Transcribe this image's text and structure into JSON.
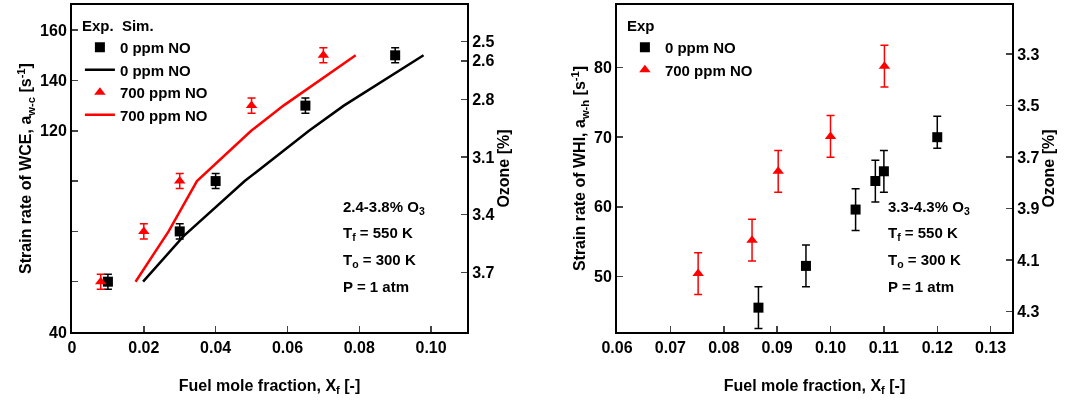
{
  "chart_data": [
    {
      "type": "scatter",
      "xlabel": "Fuel mole fraction, X$_{f}$ [-]",
      "ylabel": "Strain rate of WCE, a$_{w-c}$ [s$^{-1}$]",
      "y2label": "Ozone [%]",
      "legend_title": "Exp.  Sim.",
      "legend": "top left",
      "grid": false,
      "xlim": [
        0,
        0.11
      ],
      "xticks": [
        0,
        {
          "value": 0.02,
          "label": "0.02"
        },
        {
          "value": 0.04,
          "label": "0.04"
        },
        {
          "value": 0.06,
          "label": "0.06"
        },
        {
          "value": 0.08,
          "label": "0.08"
        },
        {
          "value": 0.1,
          "label": "0.10"
        }
      ],
      "ylim": [
        40,
        170
      ],
      "yticks": [
        40,
        {
          "value": 60,
          "label": null
        },
        {
          "value": 80,
          "label": null
        },
        {
          "value": 100,
          "label": null
        },
        120,
        140,
        160
      ],
      "y2lim": [
        4.01,
        2.31
      ],
      "y2ticks": [
        {
          "value": 2.5,
          "label": "2.5"
        },
        {
          "value": 2.6,
          "label": "2.6"
        },
        {
          "value": 2.8,
          "label": "2.8"
        },
        {
          "value": 3.1,
          "label": "3.1"
        },
        {
          "value": 3.4,
          "label": "3.4"
        },
        {
          "value": 3.7,
          "label": "3.7"
        }
      ],
      "series": [
        {
          "name": "0 ppm NO",
          "color": "#000000",
          "marker": "square",
          "x": [
            0.01,
            0.03,
            0.04,
            0.065,
            0.09
          ],
          "values": [
            60,
            80,
            100,
            130,
            150
          ],
          "errors": [
            3,
            3,
            3,
            3,
            3
          ]
        },
        {
          "name": "0 ppm NO",
          "type": "line",
          "color": "#000000",
          "marker": "none",
          "line_style": "solid",
          "x": [
            0.0198,
            0.031,
            0.0481,
            0.066,
            0.0757,
            0.0979
          ],
          "values": [
            60,
            78,
            100,
            120,
            130,
            150
          ]
        },
        {
          "name": "700 ppm NO",
          "color": "#ff0000",
          "marker": "triangle",
          "x": [
            0.008,
            0.02,
            0.03,
            0.05,
            0.07
          ],
          "values": [
            60,
            80,
            100,
            130,
            150
          ],
          "errors": [
            3,
            3,
            3,
            3,
            3
          ]
        },
        {
          "name": "700 ppm NO",
          "type": "line",
          "color": "#ff0000",
          "marker": "none",
          "line_style": "solid",
          "x": [
            0.0177,
            0.0269,
            0.0348,
            0.0499,
            0.0589,
            0.079
          ],
          "values": [
            60,
            80,
            100,
            120,
            130,
            150
          ]
        }
      ],
      "annotations": [
        "2.4-3.8% O$_{3}$",
        "T$_{f}$ = 550 K",
        "T$_{o}$ = 300 K",
        "P = 1 atm"
      ]
    },
    {
      "type": "scatter",
      "xlabel": "Fuel mole fraction, X$_{f}$ [-]",
      "ylabel": "Strain rate of WHI, a$_{w-h}$ [s$^{-1}$]",
      "y2label": "Ozone [%]",
      "legend_title": "Exp",
      "legend": "top left",
      "grid": false,
      "xlim": [
        0.06,
        0.134
      ],
      "xticks": [
        {
          "value": 0.06,
          "label": "0.06"
        },
        {
          "value": 0.07,
          "label": "0.07"
        },
        {
          "value": 0.08,
          "label": "0.08"
        },
        {
          "value": 0.09,
          "label": "0.09"
        },
        {
          "value": 0.1,
          "label": "0.10"
        },
        {
          "value": 0.11,
          "label": "0.11"
        },
        {
          "value": 0.12,
          "label": "0.12"
        },
        {
          "value": 0.13,
          "label": "0.13"
        }
      ],
      "ylim": [
        42,
        89
      ],
      "yticks": [
        50,
        60,
        70,
        80
      ],
      "y2lim": [
        4.38,
        3.11
      ],
      "y2ticks": [
        {
          "value": 3.3,
          "label": "3.3"
        },
        {
          "value": 3.5,
          "label": "3.5"
        },
        {
          "value": 3.7,
          "label": "3.7"
        },
        {
          "value": 3.9,
          "label": "3.9"
        },
        {
          "value": 4.1,
          "label": "4.1"
        },
        {
          "value": 4.3,
          "label": "4.3"
        }
      ],
      "series": [
        {
          "name": "0 ppm NO",
          "color": "#000000",
          "marker": "square",
          "x": [
            0.0865,
            0.0954,
            0.1047,
            0.1084,
            0.11,
            0.12
          ],
          "values": [
            45.5,
            51.5,
            59.6,
            63.7,
            65.1,
            70
          ],
          "errors": [
            3,
            3,
            3,
            3,
            3,
            [
              68.4,
              73
            ]
          ]
        },
        {
          "name": "700 ppm NO",
          "color": "#ff0000",
          "marker": "triangle",
          "x": [
            0.0752,
            0.0853,
            0.0902,
            0.1,
            0.1101
          ],
          "values": [
            50.4,
            55.2,
            65.1,
            70.1,
            80.2
          ],
          "errors": [
            3,
            3,
            3,
            3,
            3
          ]
        }
      ],
      "annotations": [
        "3.3-4.3% O$_{3}$",
        "T$_{f}$ = 550 K",
        "T$_{o}$ = 300 K",
        "P = 1 atm"
      ]
    }
  ]
}
